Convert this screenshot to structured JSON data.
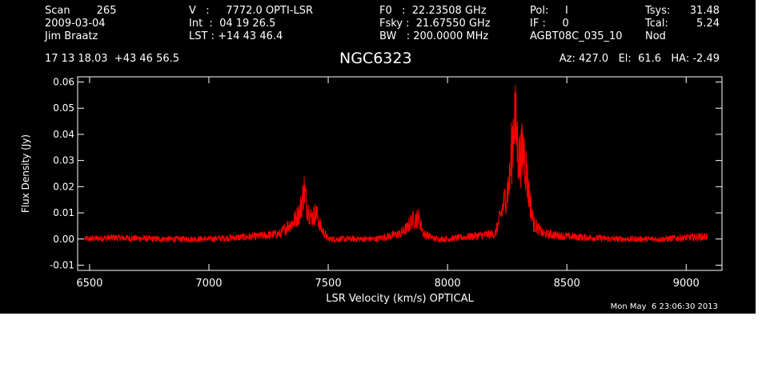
{
  "header": {
    "col1": [
      "Scan        265",
      "2009-03-04",
      "Jim Braatz"
    ],
    "col2": [
      "V   :     7772.0 OPTI-LSR",
      "Int  :  04 19 26.5",
      "LST : +14 43 46.4"
    ],
    "col3": [
      "F0   :  22.23508 GHz",
      "Fsky :  21.67550 GHz",
      "BW   : 200.0000 MHz"
    ],
    "col4": [
      "Pol:     I",
      "IF :     0",
      "AGBT08C_035_10"
    ],
    "col5": [
      "Tsys:",
      "Tcal:",
      "Nod"
    ],
    "col5_values": [
      "31.48",
      "5.24",
      ""
    ],
    "coords": "17 13 18.03  +43 46 56.5",
    "object": "NGC6323",
    "pointing": "Az: 427.0   El:  61.6   HA: -2.49",
    "timestamp": "Mon May  6 23:06:30 2013"
  },
  "chart_data": {
    "type": "line",
    "xlabel": "LSR Velocity (km/s) OPTICAL",
    "ylabel": "Flux Density (Jy)",
    "xlim": [
      6450,
      9150
    ],
    "ylim": [
      -0.012,
      0.062
    ],
    "xticks": [
      6500,
      7000,
      7500,
      8000,
      8500,
      9000
    ],
    "xtick_labels": [
      "6500",
      "7000",
      "7500",
      "8000",
      "8500",
      "9000"
    ],
    "yticks": [
      -0.01,
      0.0,
      0.01,
      0.02,
      0.03,
      0.04,
      0.05,
      0.06
    ],
    "ytick_labels": [
      "-0.01",
      "0.00",
      "0.01",
      "0.02",
      "0.03",
      "0.04",
      "0.05",
      "0.06"
    ],
    "series_color": "#ff0000",
    "series": [
      {
        "x": [
          6480,
          6600,
          6800,
          7000,
          7200,
          7300,
          7330,
          7350,
          7380,
          7400,
          7410,
          7430,
          7450,
          7470,
          7500,
          7600,
          7700,
          7800,
          7830,
          7850,
          7880,
          7900,
          7950,
          8000,
          8100,
          8200,
          8220,
          8240,
          8260,
          8280,
          8300,
          8320,
          8340,
          8360,
          8400,
          8500,
          8700,
          8900,
          9090
        ],
        "y": [
          0.0,
          0.0005,
          0.0,
          0.0,
          0.001,
          0.002,
          0.005,
          0.006,
          0.01,
          0.019,
          0.013,
          0.008,
          0.01,
          0.004,
          0.0,
          0.0,
          0.0,
          0.002,
          0.004,
          0.007,
          0.008,
          0.002,
          0.0,
          0.0,
          0.001,
          0.002,
          0.008,
          0.015,
          0.022,
          0.048,
          0.03,
          0.034,
          0.018,
          0.006,
          0.002,
          0.001,
          0.0,
          0.0,
          0.001
        ]
      }
    ]
  }
}
